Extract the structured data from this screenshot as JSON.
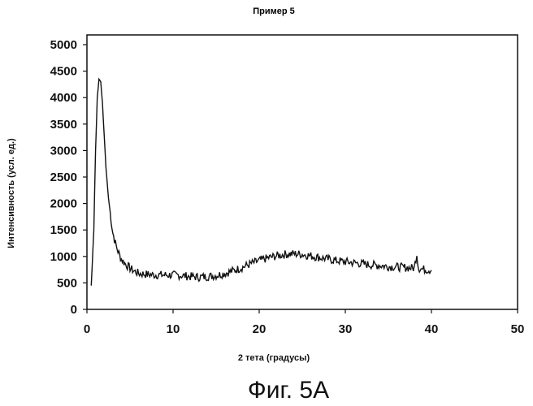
{
  "chart_data": {
    "type": "line",
    "title": "Пример 5",
    "xlabel": "2 тета (градусы)",
    "ylabel": "Интенсивность (усл. ед.)",
    "xlim": [
      0,
      50
    ],
    "ylim": [
      0,
      5000
    ],
    "x_ticks": [
      "0",
      "10",
      "20",
      "30",
      "40",
      "50"
    ],
    "y_ticks": [
      "0",
      "500",
      "1000",
      "1500",
      "2000",
      "2500",
      "3000",
      "3500",
      "4000",
      "4500",
      "5000"
    ],
    "grid": false,
    "legend": "none",
    "series": [
      {
        "x": [
          0.5,
          0.8,
          1.0,
          1.2,
          1.4,
          1.6,
          1.8,
          2.0,
          2.2,
          2.5,
          2.8,
          3.0,
          3.3,
          3.6,
          4.0,
          4.5,
          5.0,
          5.5,
          6.0,
          7.0,
          8.0,
          9.0,
          10.0,
          11.0,
          12.0,
          13.0,
          14.0,
          15.0,
          16.0,
          17.0,
          18.0,
          19.0,
          20.0,
          21.0,
          22.0,
          23.0,
          24.0,
          25.0,
          26.0,
          27.0,
          28.0,
          29.0,
          30.0,
          31.0,
          32.0,
          33.0,
          34.0,
          35.0,
          36.0,
          37.0,
          38.0,
          38.3,
          38.5,
          38.7,
          39.0,
          39.5,
          40.0
        ],
        "y": [
          450,
          1500,
          3000,
          4000,
          4350,
          4300,
          3900,
          3300,
          2700,
          2100,
          1700,
          1450,
          1250,
          1100,
          950,
          850,
          780,
          720,
          680,
          660,
          650,
          650,
          650,
          640,
          620,
          610,
          620,
          640,
          680,
          730,
          790,
          860,
          920,
          970,
          1010,
          1040,
          1050,
          1040,
          1010,
          980,
          950,
          920,
          900,
          880,
          860,
          840,
          830,
          810,
          800,
          790,
          780,
          1050,
          780,
          770,
          760,
          750,
          740
        ]
      }
    ]
  },
  "caption": "Фиг. 5А",
  "colors": {
    "line": "#111111",
    "axis": "#111111",
    "background": "#ffffff"
  }
}
